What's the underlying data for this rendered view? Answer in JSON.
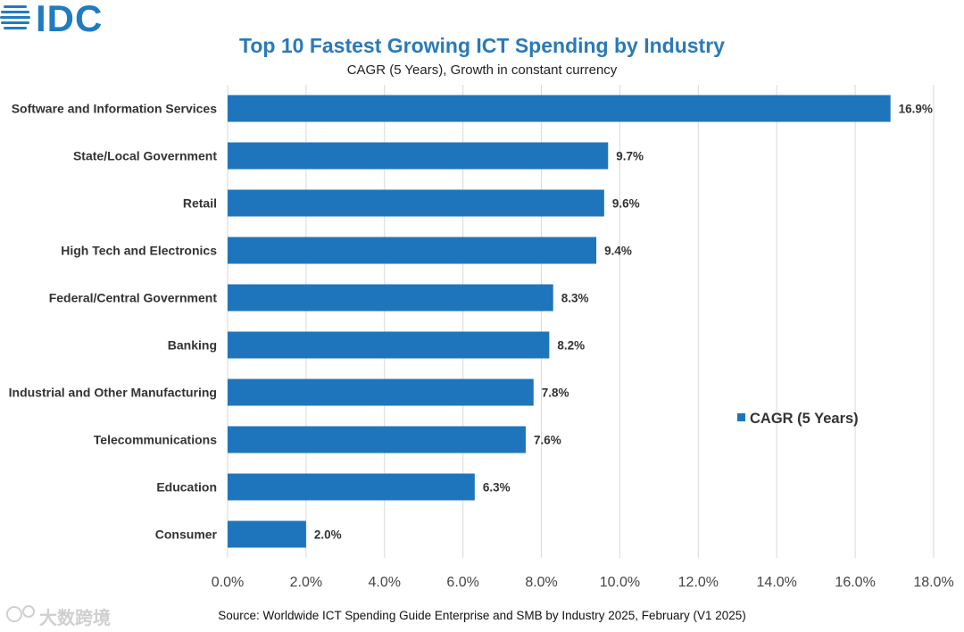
{
  "logo": {
    "text": "IDC"
  },
  "watermark": {
    "text": "大数跨境"
  },
  "chart_data": {
    "type": "bar",
    "orientation": "horizontal",
    "title": "Top 10 Fastest Growing ICT Spending by Industry",
    "subtitle": "CAGR (5 Years), Growth in constant currency",
    "categories": [
      "Software and Information Services",
      "State/Local Government",
      "Retail",
      "High Tech and Electronics",
      "Federal/Central Government",
      "Banking",
      "Industrial and Other Manufacturing",
      "Telecommunications",
      "Education",
      "Consumer"
    ],
    "series": [
      {
        "name": "CAGR (5 Years)",
        "values": [
          16.9,
          9.7,
          9.6,
          9.4,
          8.3,
          8.2,
          7.8,
          7.6,
          6.3,
          2.0
        ],
        "labels": [
          "16.9%",
          "9.7%",
          "9.6%",
          "9.4%",
          "8.3%",
          "8.2%",
          "7.8%",
          "7.6%",
          "6.3%",
          "2.0%"
        ]
      }
    ],
    "xlim": [
      0,
      18
    ],
    "x_ticks": [
      "0.0%",
      "2.0%",
      "4.0%",
      "6.0%",
      "8.0%",
      "10.0%",
      "12.0%",
      "14.0%",
      "16.0%",
      "18.0%"
    ],
    "grid": "vertical",
    "legend": "right",
    "bar_color": "#1f75bb",
    "source": "Source: Worldwide ICT Spending Guide Enterprise and SMB by Industry 2025, February (V1 2025)"
  }
}
